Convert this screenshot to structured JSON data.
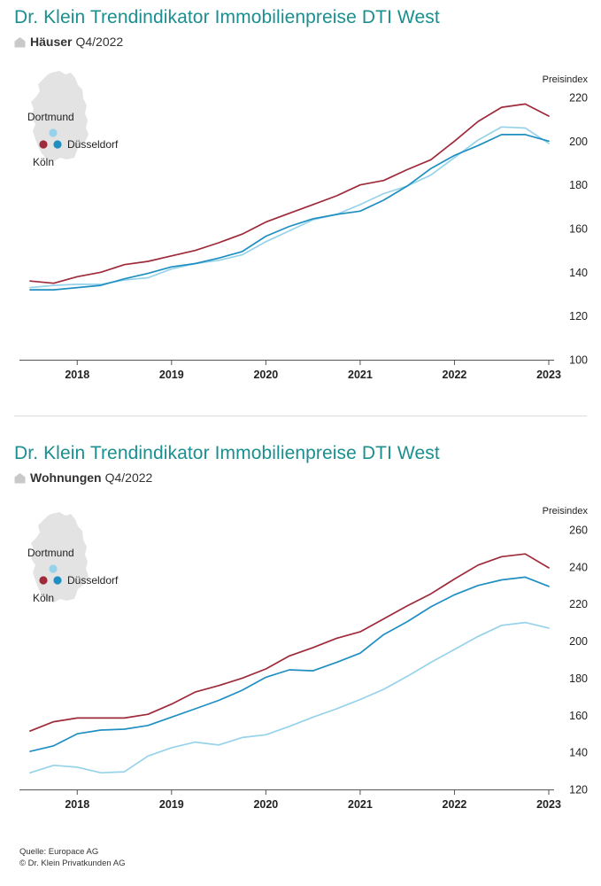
{
  "charts": [
    {
      "title": "Dr. Klein Trendindikator Immobilienpreise DTI West",
      "subtitle_bold": "Häuser",
      "subtitle_rest": "Q4/2022",
      "unit_label": "Preisindex",
      "city_labels": [
        "Dortmund",
        "Düsseldorf",
        "Köln"
      ]
    },
    {
      "title": "Dr. Klein Trendindikator Immobilienpreise DTI West",
      "subtitle_bold": "Wohnungen",
      "subtitle_rest": "Q4/2022",
      "unit_label": "Preisindex",
      "city_labels": [
        "Dortmund",
        "Düsseldorf",
        "Köln"
      ]
    }
  ],
  "source": {
    "line1": "Quelle: Europace AG",
    "line2": "© Dr. Klein Privatkunden AG"
  },
  "colors": {
    "Köln": "#9e2a3a",
    "Düsseldorf": "#1f8fc2",
    "Dortmund": "#96d3ea",
    "map": "#e3e3e3",
    "title": "#1b8f8f"
  },
  "chart_data": [
    {
      "type": "line",
      "title": "Dr. Klein Trendindikator Immobilienpreise DTI West",
      "subtitle": "Häuser Q4/2022",
      "ylabel": "Preisindex",
      "ylim": [
        100,
        220
      ],
      "yticks": [
        100,
        120,
        140,
        160,
        180,
        200,
        220
      ],
      "xlim": [
        2017.5,
        2023.0
      ],
      "xticks": [
        2018,
        2019,
        2020,
        2021,
        2022,
        2023
      ],
      "grid": false,
      "legend": "map-top-left",
      "x": [
        2017.5,
        2017.75,
        2018.0,
        2018.25,
        2018.5,
        2018.75,
        2019.0,
        2019.25,
        2019.5,
        2019.75,
        2020.0,
        2020.25,
        2020.5,
        2020.75,
        2021.0,
        2021.25,
        2021.5,
        2021.75,
        2022.0,
        2022.25,
        2022.5,
        2022.75,
        2023.0
      ],
      "series": [
        {
          "name": "Köln",
          "values": [
            136,
            135,
            138,
            140,
            143.5,
            145,
            147.5,
            150,
            153.5,
            157.5,
            163,
            167,
            171,
            175,
            180,
            182,
            187,
            191.5,
            200,
            209,
            215.5,
            217,
            211.5
          ]
        },
        {
          "name": "Düsseldorf",
          "values": [
            132,
            132,
            133,
            134,
            137,
            139.5,
            142.5,
            144,
            146.5,
            149.5,
            156.5,
            161,
            164.5,
            166.5,
            168,
            173,
            179.5,
            187.5,
            193.5,
            198,
            203,
            203,
            200
          ]
        },
        {
          "name": "Dortmund",
          "values": [
            133,
            134,
            134.5,
            134.5,
            136.5,
            137.5,
            141.5,
            144,
            145.5,
            148,
            154,
            159,
            164,
            166.5,
            171,
            176,
            179.5,
            184.5,
            192.5,
            200.5,
            206.5,
            206,
            199
          ]
        }
      ]
    },
    {
      "type": "line",
      "title": "Dr. Klein Trendindikator Immobilienpreise DTI West",
      "subtitle": "Wohnungen Q4/2022",
      "ylabel": "Preisindex",
      "ylim": [
        120,
        260
      ],
      "yticks": [
        120,
        140,
        160,
        180,
        200,
        220,
        240,
        260
      ],
      "xlim": [
        2017.5,
        2023.0
      ],
      "xticks": [
        2018,
        2019,
        2020,
        2021,
        2022,
        2023
      ],
      "grid": false,
      "legend": "map-top-left",
      "x": [
        2017.5,
        2017.75,
        2018.0,
        2018.25,
        2018.5,
        2018.75,
        2019.0,
        2019.25,
        2019.5,
        2019.75,
        2020.0,
        2020.25,
        2020.5,
        2020.75,
        2021.0,
        2021.25,
        2021.5,
        2021.75,
        2022.0,
        2022.25,
        2022.5,
        2022.75,
        2023.0
      ],
      "series": [
        {
          "name": "Köln",
          "values": [
            151.5,
            156.5,
            158.5,
            158.5,
            158.5,
            160.5,
            166,
            172.5,
            176,
            180,
            185,
            192,
            196.5,
            201.5,
            205,
            212,
            219,
            225.5,
            233.5,
            241,
            245.5,
            247,
            239.5
          ]
        },
        {
          "name": "Düsseldorf",
          "values": [
            140.5,
            143.5,
            150,
            152,
            152.5,
            154.5,
            159,
            163.5,
            168,
            173.5,
            180.5,
            184.5,
            184,
            188.5,
            193.5,
            203.5,
            210.5,
            218.5,
            225,
            230,
            233,
            234.5,
            229.5
          ]
        },
        {
          "name": "Dortmund",
          "values": [
            129,
            133,
            132,
            129,
            129.5,
            138,
            142.5,
            145.5,
            144,
            148,
            149.5,
            154,
            159,
            163.5,
            168.5,
            174,
            181,
            188.5,
            195.5,
            202.5,
            208.5,
            210,
            207
          ]
        }
      ]
    }
  ]
}
